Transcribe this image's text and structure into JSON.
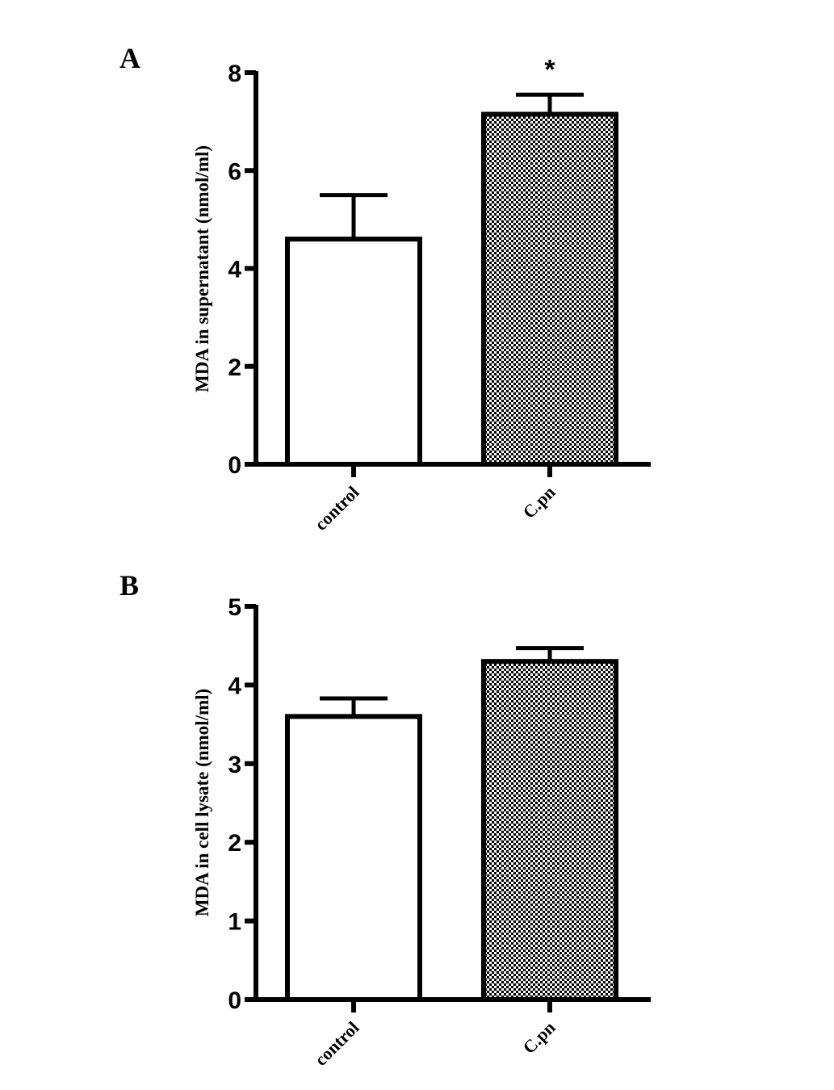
{
  "chart_data": [
    {
      "type": "bar",
      "panel": "A",
      "categories": [
        "control",
        "C.pn"
      ],
      "values": [
        4.6,
        7.15
      ],
      "errors": [
        0.9,
        0.4
      ],
      "ylabel": "MDA in supernatant (nmol/ml)",
      "xlabel": "",
      "ylim": [
        0,
        8
      ],
      "yticks": [
        "0",
        "2",
        "4",
        "6",
        "8"
      ],
      "annotations": [
        {
          "category": "C.pn",
          "text": "*"
        }
      ],
      "bar_fills": [
        "white",
        "checkerboard"
      ],
      "grid": false
    },
    {
      "type": "bar",
      "panel": "B",
      "categories": [
        "control",
        "C.pn"
      ],
      "values": [
        3.6,
        4.3
      ],
      "errors": [
        0.23,
        0.17
      ],
      "ylabel": "MDA in cell lysate (nmol/ml)",
      "xlabel": "",
      "ylim": [
        0,
        5
      ],
      "yticks": [
        "0",
        "1",
        "2",
        "3",
        "4",
        "5"
      ],
      "annotations": [],
      "bar_fills": [
        "white",
        "checkerboard"
      ],
      "grid": false
    }
  ]
}
